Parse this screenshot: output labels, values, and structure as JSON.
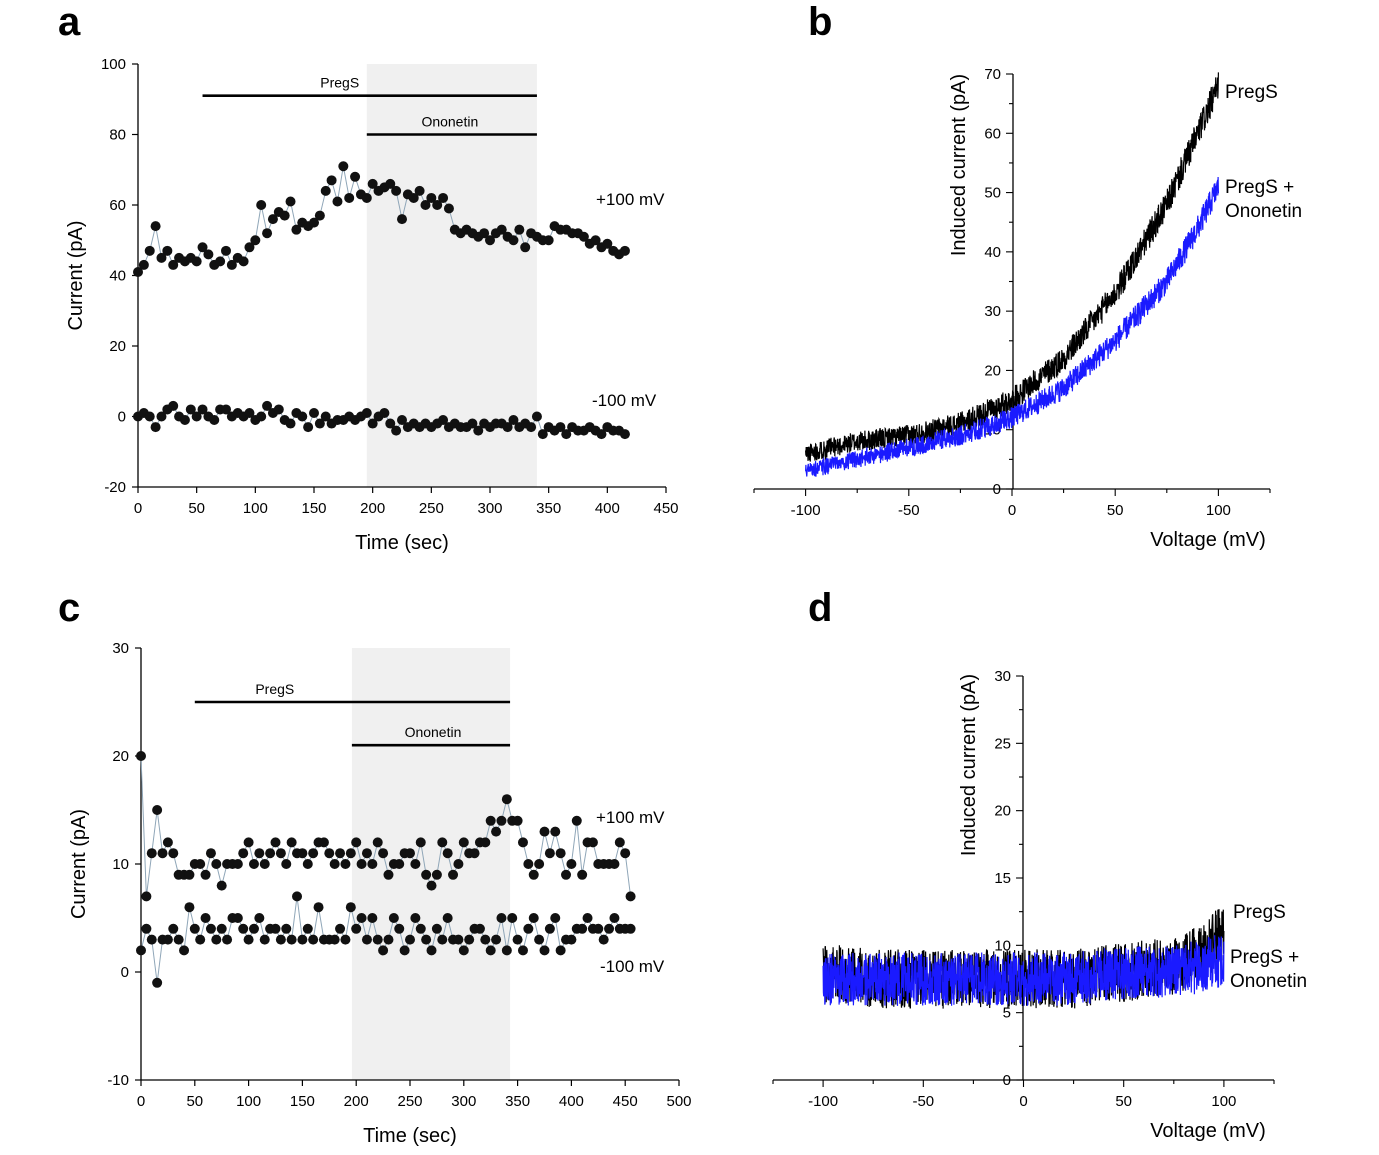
{
  "panels": {
    "a": "a",
    "b": "b",
    "c": "c",
    "d": "d"
  },
  "colors": {
    "black": "#000000",
    "blue": "#1a1aff",
    "shade": "#f0f0f0",
    "link": "#8fa6b8"
  },
  "chart_data": [
    {
      "id": "a",
      "type": "scatter",
      "xlabel": "Time (sec)",
      "ylabel": "Current (pA)",
      "xlim": [
        0,
        450
      ],
      "ylim": [
        -20,
        100
      ],
      "xticks": [
        "0",
        "50",
        "100",
        "150",
        "200",
        "250",
        "300",
        "350",
        "400",
        "450"
      ],
      "yticks": [
        "-20",
        "0",
        "20",
        "40",
        "60",
        "80",
        "100"
      ],
      "bars": [
        {
          "label": "PregS",
          "x": [
            55,
            340
          ],
          "y": 91
        },
        {
          "label": "Ononetin",
          "x": [
            195,
            340
          ],
          "y": 80
        }
      ],
      "shaded": [
        195,
        340
      ],
      "series": [
        {
          "name": "+100 mV",
          "x": [
            0,
            5,
            10,
            15,
            20,
            25,
            30,
            35,
            40,
            45,
            50,
            55,
            60,
            65,
            70,
            75,
            80,
            85,
            90,
            95,
            100,
            105,
            110,
            115,
            120,
            125,
            130,
            135,
            140,
            145,
            150,
            155,
            160,
            165,
            170,
            175,
            180,
            185,
            190,
            195,
            200,
            205,
            210,
            215,
            220,
            225,
            230,
            235,
            240,
            245,
            250,
            255,
            260,
            265,
            270,
            275,
            280,
            285,
            290,
            295,
            300,
            305,
            310,
            315,
            320,
            325,
            330,
            335,
            340,
            345,
            350,
            355,
            360,
            365,
            370,
            375,
            380,
            385,
            390,
            395,
            400,
            405,
            410,
            415
          ],
          "y": [
            41,
            43,
            47,
            54,
            45,
            47,
            43,
            45,
            44,
            45,
            44,
            48,
            46,
            43,
            44,
            47,
            43,
            45,
            44,
            48,
            50,
            60,
            52,
            56,
            58,
            57,
            61,
            53,
            55,
            54,
            55,
            57,
            64,
            67,
            61,
            71,
            62,
            68,
            63,
            62,
            66,
            64,
            65,
            66,
            64,
            56,
            63,
            62,
            64,
            60,
            62,
            60,
            62,
            59,
            53,
            52,
            53,
            52,
            51,
            52,
            50,
            52,
            53,
            51,
            50,
            53,
            48,
            52,
            51,
            50,
            50,
            54,
            53,
            53,
            52,
            52,
            51,
            49,
            50,
            48,
            49,
            47,
            46,
            47
          ]
        },
        {
          "name": "-100 mV",
          "x": [
            0,
            5,
            10,
            15,
            20,
            25,
            30,
            35,
            40,
            45,
            50,
            55,
            60,
            65,
            70,
            75,
            80,
            85,
            90,
            95,
            100,
            105,
            110,
            115,
            120,
            125,
            130,
            135,
            140,
            145,
            150,
            155,
            160,
            165,
            170,
            175,
            180,
            185,
            190,
            195,
            200,
            205,
            210,
            215,
            220,
            225,
            230,
            235,
            240,
            245,
            250,
            255,
            260,
            265,
            270,
            275,
            280,
            285,
            290,
            295,
            300,
            305,
            310,
            315,
            320,
            325,
            330,
            335,
            340,
            345,
            350,
            355,
            360,
            365,
            370,
            375,
            380,
            385,
            390,
            395,
            400,
            405,
            410,
            415
          ],
          "y": [
            0,
            1,
            0,
            -3,
            0,
            2,
            3,
            0,
            -1,
            2,
            0,
            2,
            0,
            -1,
            2,
            2,
            0,
            1,
            0,
            1,
            -1,
            0,
            3,
            1,
            2,
            -1,
            -2,
            1,
            0,
            -3,
            1,
            -2,
            0,
            -2,
            -1,
            -1,
            0,
            -1,
            0,
            1,
            -2,
            0,
            1,
            -2,
            -4,
            -1,
            -3,
            -2,
            -3,
            -2,
            -3,
            -2,
            -1,
            -3,
            -2,
            -3,
            -3,
            -2,
            -4,
            -2,
            -3,
            -2,
            -2,
            -3,
            -1,
            -3,
            -2,
            -3,
            0,
            -5,
            -3,
            -4,
            -3,
            -5,
            -3,
            -4,
            -4,
            -3,
            -4,
            -5,
            -3,
            -4,
            -4,
            -5
          ]
        }
      ]
    },
    {
      "id": "b",
      "type": "line",
      "xlabel": "Voltage (mV)",
      "ylabel": "Induced current (pA)",
      "xlim": [
        -125,
        125
      ],
      "ylim": [
        0,
        70
      ],
      "xticks": [
        "-100",
        "-50",
        "0",
        "50",
        "100"
      ],
      "yticks": [
        "0",
        "10",
        "20",
        "30",
        "40",
        "50",
        "60",
        "70"
      ],
      "series": [
        {
          "name": "PregS",
          "color": "#000000",
          "x": [
            -100,
            -75,
            -50,
            -25,
            0,
            25,
            50,
            75,
            90,
            100
          ],
          "y": [
            6,
            8,
            9,
            11,
            15,
            22,
            33,
            48,
            60,
            68
          ]
        },
        {
          "name": "PregS + Ononetin",
          "color": "#1a1aff",
          "x": [
            -100,
            -75,
            -50,
            -25,
            0,
            25,
            50,
            75,
            90,
            100
          ],
          "y": [
            3,
            5,
            7,
            9,
            12,
            17,
            25,
            35,
            44,
            51
          ]
        }
      ]
    },
    {
      "id": "c",
      "type": "scatter",
      "xlabel": "Time (sec)",
      "ylabel": "Current (pA)",
      "xlim": [
        0,
        500
      ],
      "ylim": [
        -10,
        30
      ],
      "xticks": [
        "0",
        "50",
        "100",
        "150",
        "200",
        "250",
        "300",
        "350",
        "400",
        "450",
        "500"
      ],
      "yticks": [
        "-10",
        "0",
        "10",
        "20",
        "30"
      ],
      "bars": [
        {
          "label": "PregS",
          "x": [
            50,
            343
          ],
          "y": 25
        },
        {
          "label": "Ononetin",
          "x": [
            196,
            343
          ],
          "y": 21
        }
      ],
      "shaded": [
        196,
        343
      ],
      "series": [
        {
          "name": "+100 mV",
          "x": [
            0,
            5,
            10,
            15,
            20,
            25,
            30,
            35,
            40,
            45,
            50,
            55,
            60,
            65,
            70,
            75,
            80,
            85,
            90,
            95,
            100,
            105,
            110,
            115,
            120,
            125,
            130,
            135,
            140,
            145,
            150,
            155,
            160,
            165,
            170,
            175,
            180,
            185,
            190,
            195,
            200,
            205,
            210,
            215,
            220,
            225,
            230,
            235,
            240,
            245,
            250,
            255,
            260,
            265,
            270,
            275,
            280,
            285,
            290,
            295,
            300,
            305,
            310,
            315,
            320,
            325,
            330,
            335,
            340,
            345,
            350,
            355,
            360,
            365,
            370,
            375,
            380,
            385,
            390,
            395,
            400,
            405,
            410,
            415,
            420,
            425,
            430,
            435,
            440,
            445,
            450,
            455
          ],
          "y": [
            20,
            7,
            11,
            15,
            11,
            12,
            11,
            9,
            9,
            9,
            10,
            10,
            9,
            11,
            10,
            8,
            10,
            10,
            10,
            11,
            12,
            10,
            11,
            10,
            11,
            12,
            11,
            10,
            12,
            11,
            11,
            10,
            11,
            12,
            12,
            11,
            10,
            11,
            10,
            11,
            12,
            10,
            11,
            10,
            12,
            11,
            9,
            10,
            10,
            11,
            11,
            10,
            12,
            9,
            8,
            9,
            12,
            11,
            9,
            10,
            12,
            11,
            11,
            12,
            12,
            14,
            13,
            14,
            16,
            14,
            14,
            12,
            10,
            9,
            10,
            13,
            11,
            13,
            11,
            9,
            10,
            14,
            9,
            12,
            12,
            10,
            10,
            10,
            10,
            12,
            11,
            7
          ]
        },
        {
          "name": "-100 mV",
          "x": [
            0,
            5,
            10,
            15,
            20,
            25,
            30,
            35,
            40,
            45,
            50,
            55,
            60,
            65,
            70,
            75,
            80,
            85,
            90,
            95,
            100,
            105,
            110,
            115,
            120,
            125,
            130,
            135,
            140,
            145,
            150,
            155,
            160,
            165,
            170,
            175,
            180,
            185,
            190,
            195,
            200,
            205,
            210,
            215,
            220,
            225,
            230,
            235,
            240,
            245,
            250,
            255,
            260,
            265,
            270,
            275,
            280,
            285,
            290,
            295,
            300,
            305,
            310,
            315,
            320,
            325,
            330,
            335,
            340,
            345,
            350,
            355,
            360,
            365,
            370,
            375,
            380,
            385,
            390,
            395,
            400,
            405,
            410,
            415,
            420,
            425,
            430,
            435,
            440,
            445,
            450,
            455
          ],
          "y": [
            2,
            4,
            3,
            -1,
            3,
            3,
            4,
            3,
            2,
            6,
            4,
            3,
            5,
            4,
            3,
            4,
            3,
            5,
            5,
            4,
            3,
            4,
            5,
            3,
            4,
            4,
            3,
            4,
            3,
            7,
            3,
            4,
            3,
            6,
            3,
            3,
            3,
            4,
            3,
            6,
            4,
            5,
            3,
            5,
            3,
            2,
            3,
            5,
            4,
            2,
            3,
            5,
            4,
            3,
            2,
            4,
            3,
            5,
            3,
            3,
            2,
            3,
            4,
            4,
            3,
            2,
            3,
            5,
            2,
            5,
            3,
            2,
            4,
            5,
            3,
            2,
            4,
            5,
            2,
            3,
            3,
            4,
            4,
            5,
            4,
            4,
            3,
            4,
            5,
            4,
            4,
            4
          ]
        }
      ]
    },
    {
      "id": "d",
      "type": "line",
      "xlabel": "Voltage (mV)",
      "ylabel": "Induced current (pA)",
      "xlim": [
        -125,
        125
      ],
      "ylim": [
        0,
        30
      ],
      "xticks": [
        "-100",
        "-50",
        "0",
        "50",
        "100"
      ],
      "yticks": [
        "0",
        "5",
        "10",
        "15",
        "20",
        "25",
        "30"
      ],
      "series": [
        {
          "name": "PregS",
          "color": "#000000",
          "x": [
            -100,
            -75,
            -50,
            -25,
            0,
            25,
            50,
            75,
            90,
            100
          ],
          "y": [
            8,
            7.5,
            7.5,
            7.5,
            7.5,
            7.5,
            8,
            8.5,
            9.5,
            11
          ]
        },
        {
          "name": "PregS + Ononetin",
          "color": "#1a1aff",
          "x": [
            -100,
            -75,
            -50,
            -25,
            0,
            25,
            50,
            75,
            90,
            100
          ],
          "y": [
            7.5,
            7.5,
            7.5,
            7.5,
            7.5,
            7.5,
            8,
            8,
            8.5,
            9
          ]
        }
      ]
    }
  ]
}
